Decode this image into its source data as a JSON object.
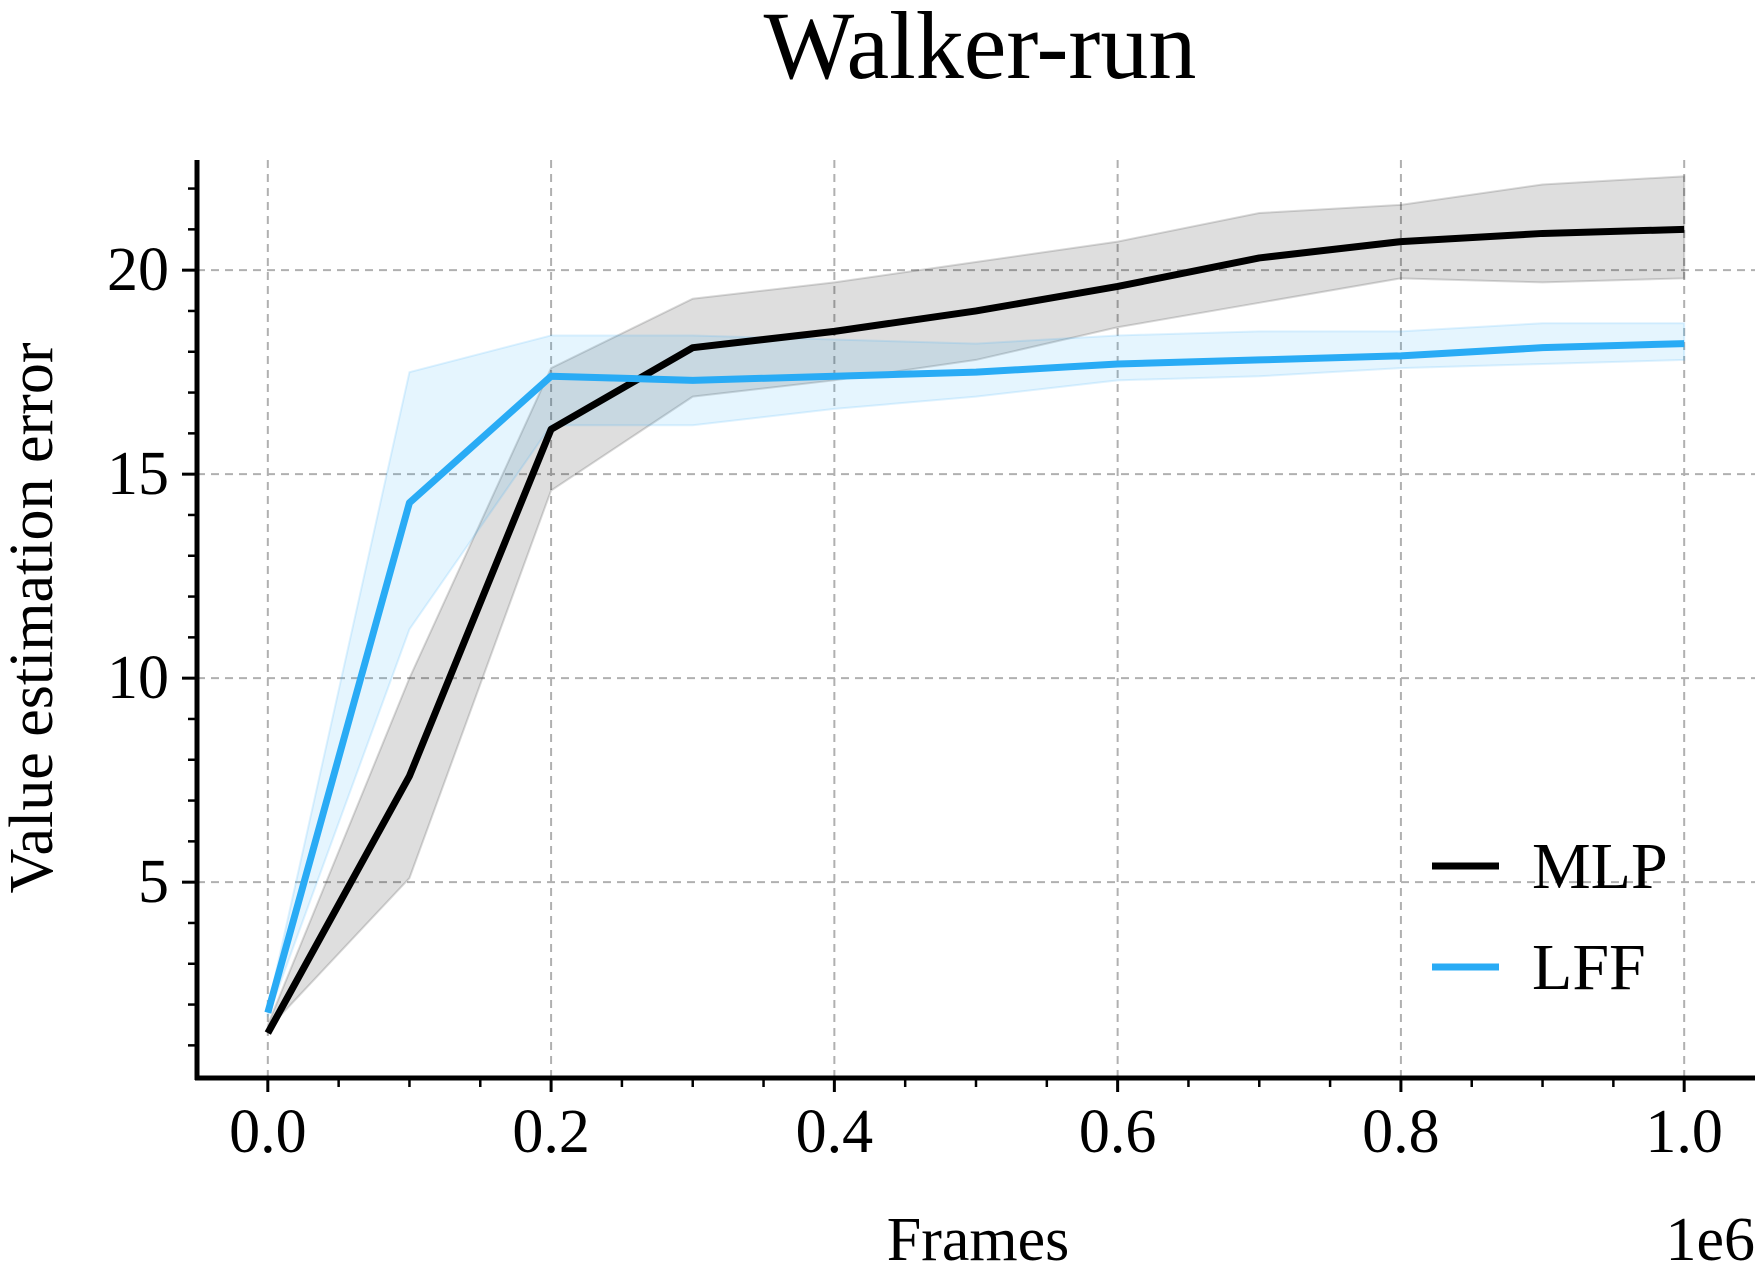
{
  "chart_data": {
    "type": "line",
    "title": "Walker-run",
    "xlabel": "Frames",
    "ylabel": "Value estimation error",
    "x_offset_label": "1e6",
    "xlim": [
      -0.05,
      1.05
    ],
    "ylim": [
      0.2,
      22.7
    ],
    "xticks": [
      0.0,
      0.2,
      0.4,
      0.6,
      0.8,
      1.0
    ],
    "xtick_labels": [
      "0.0",
      "0.2",
      "0.4",
      "0.6",
      "0.8",
      "1.0"
    ],
    "yticks": [
      5,
      10,
      15,
      20
    ],
    "ytick_labels": [
      "5",
      "10",
      "15",
      "20"
    ],
    "grid": true,
    "legend_position": "bottom-right",
    "x": [
      0.0,
      0.1,
      0.2,
      0.3,
      0.4,
      0.5,
      0.6,
      0.7,
      0.8,
      0.9,
      1.0
    ],
    "series": [
      {
        "name": "MLP",
        "color": "#000000",
        "values": [
          1.3,
          7.6,
          16.1,
          18.1,
          18.5,
          19.0,
          19.6,
          20.3,
          20.7,
          20.9,
          21.0
        ],
        "lower": [
          1.4,
          5.1,
          14.6,
          16.9,
          17.3,
          17.8,
          18.6,
          19.2,
          19.8,
          19.7,
          19.8
        ],
        "upper": [
          1.5,
          10.0,
          17.6,
          19.3,
          19.7,
          20.2,
          20.7,
          21.4,
          21.6,
          22.1,
          22.3
        ]
      },
      {
        "name": "LFF",
        "color": "#29abf5",
        "values": [
          1.8,
          14.3,
          17.4,
          17.3,
          17.4,
          17.5,
          17.7,
          17.8,
          17.9,
          18.1,
          18.2
        ],
        "lower": [
          1.7,
          11.2,
          16.2,
          16.2,
          16.6,
          16.9,
          17.3,
          17.4,
          17.6,
          17.7,
          17.8
        ],
        "upper": [
          1.9,
          17.5,
          18.4,
          18.4,
          18.3,
          18.2,
          18.4,
          18.5,
          18.5,
          18.7,
          18.7
        ]
      }
    ]
  }
}
